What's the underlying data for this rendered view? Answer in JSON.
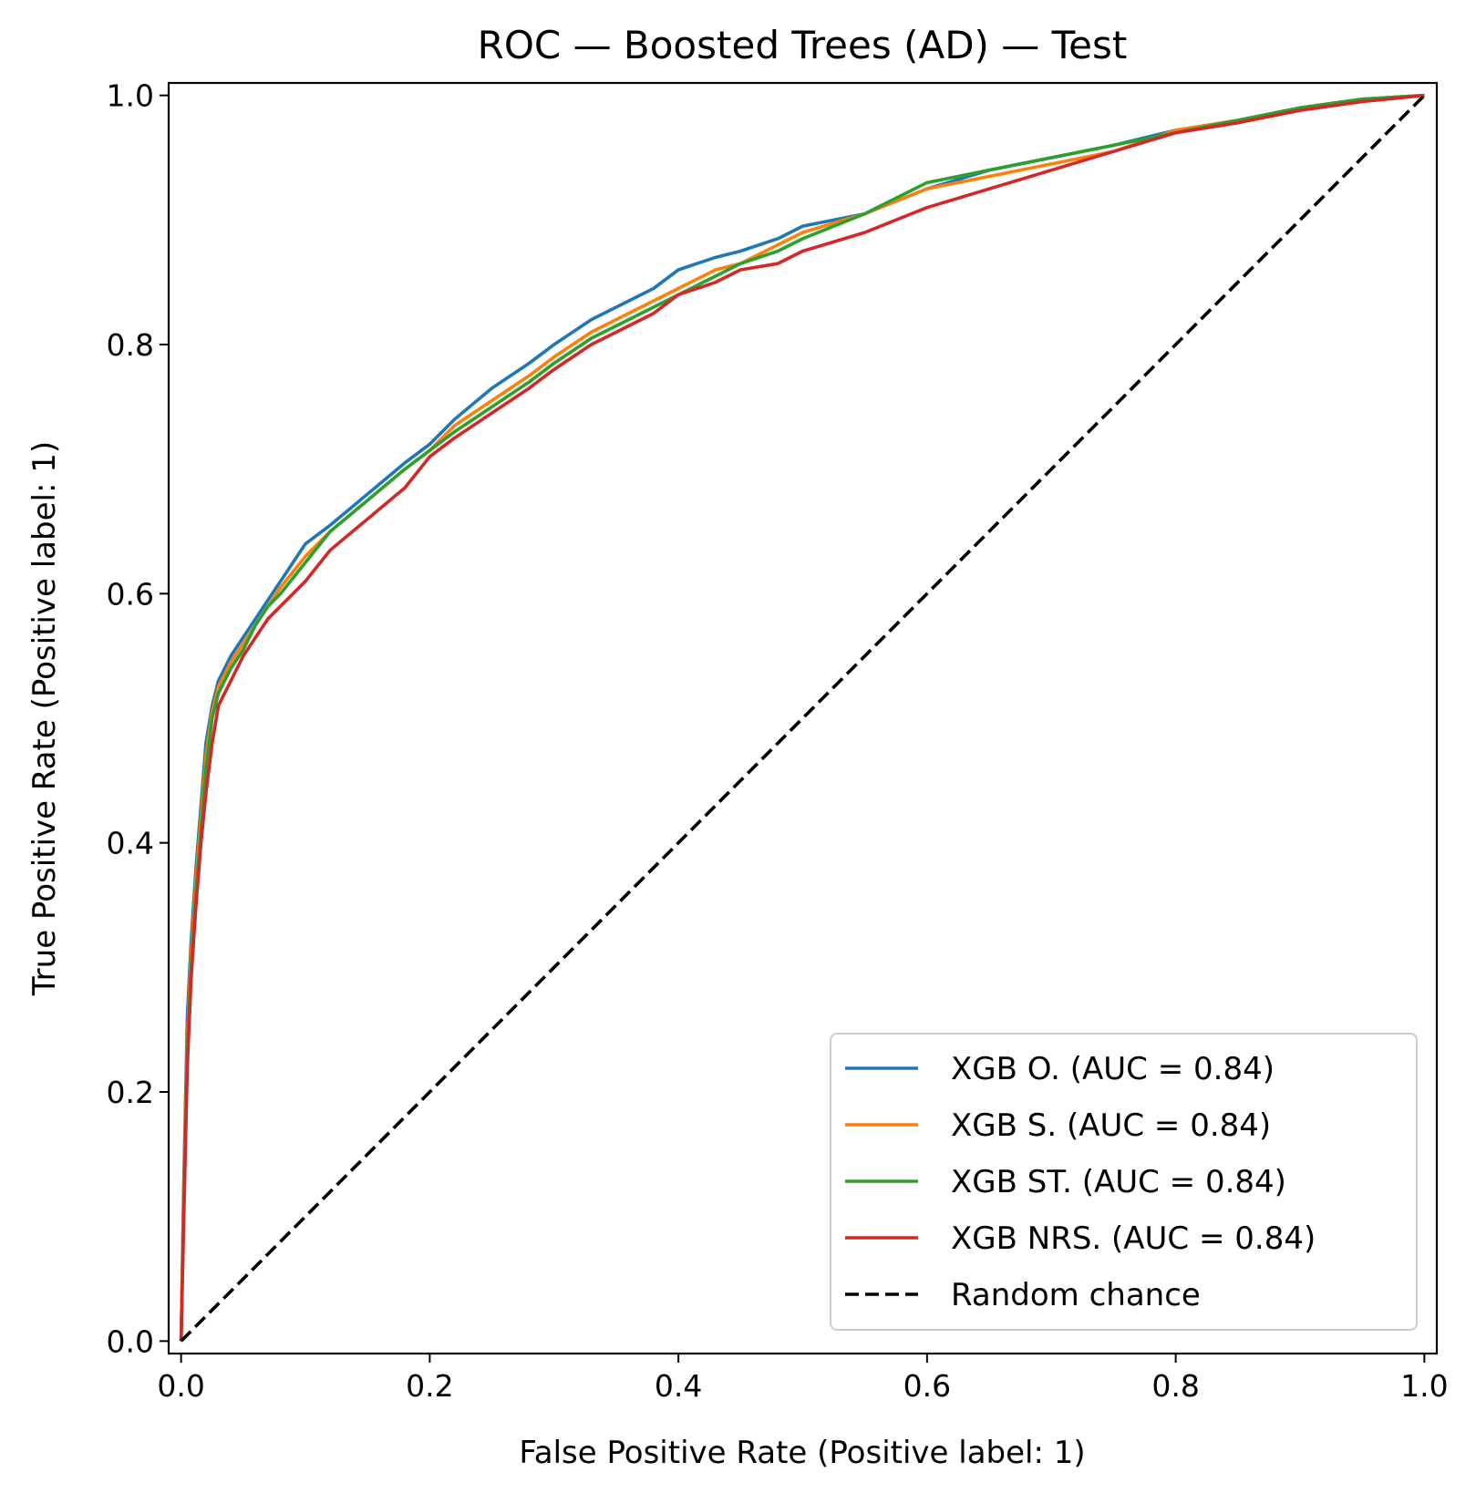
{
  "chart_data": {
    "type": "line",
    "title": "ROC — Boosted Trees (AD) — Test",
    "xlabel": "False Positive Rate (Positive label: 1)",
    "ylabel": "True Positive Rate (Positive label: 1)",
    "xlim": [
      -0.01,
      1.01
    ],
    "ylim": [
      -0.01,
      1.01
    ],
    "xticks": [
      0.0,
      0.2,
      0.4,
      0.6,
      0.8,
      1.0
    ],
    "yticks": [
      0.0,
      0.2,
      0.4,
      0.6,
      0.8,
      1.0
    ],
    "xtick_labels": [
      "0.0",
      "0.2",
      "0.4",
      "0.6",
      "0.8",
      "1.0"
    ],
    "ytick_labels": [
      "0.0",
      "0.2",
      "0.4",
      "0.6",
      "0.8",
      "1.0"
    ],
    "grid": false,
    "legend_position": "lower-right",
    "series": [
      {
        "name": "XGB O. (AUC = 0.84)",
        "color": "#1f77b4",
        "style": "solid",
        "x": [
          0,
          0.002,
          0.005,
          0.008,
          0.012,
          0.016,
          0.02,
          0.025,
          0.03,
          0.04,
          0.05,
          0.06,
          0.07,
          0.08,
          0.1,
          0.12,
          0.15,
          0.18,
          0.2,
          0.22,
          0.25,
          0.28,
          0.3,
          0.33,
          0.35,
          0.38,
          0.4,
          0.43,
          0.45,
          0.48,
          0.5,
          0.55,
          0.6,
          0.65,
          0.7,
          0.75,
          0.8,
          0.85,
          0.9,
          0.95,
          1.0
        ],
        "y": [
          0,
          0.12,
          0.26,
          0.32,
          0.38,
          0.43,
          0.48,
          0.51,
          0.53,
          0.55,
          0.565,
          0.58,
          0.595,
          0.61,
          0.64,
          0.655,
          0.68,
          0.705,
          0.72,
          0.74,
          0.765,
          0.785,
          0.8,
          0.82,
          0.83,
          0.845,
          0.86,
          0.87,
          0.875,
          0.885,
          0.895,
          0.905,
          0.925,
          0.94,
          0.95,
          0.96,
          0.972,
          0.98,
          0.99,
          0.997,
          1.0
        ]
      },
      {
        "name": "XGB S. (AUC = 0.84)",
        "color": "#ff7f0e",
        "style": "solid",
        "x": [
          0,
          0.002,
          0.005,
          0.008,
          0.012,
          0.016,
          0.02,
          0.025,
          0.03,
          0.04,
          0.05,
          0.06,
          0.07,
          0.08,
          0.1,
          0.12,
          0.15,
          0.18,
          0.2,
          0.22,
          0.25,
          0.28,
          0.3,
          0.33,
          0.35,
          0.38,
          0.4,
          0.43,
          0.45,
          0.48,
          0.5,
          0.55,
          0.6,
          0.65,
          0.7,
          0.75,
          0.8,
          0.85,
          0.9,
          0.95,
          1.0
        ],
        "y": [
          0,
          0.11,
          0.24,
          0.31,
          0.37,
          0.42,
          0.47,
          0.505,
          0.525,
          0.545,
          0.56,
          0.575,
          0.59,
          0.605,
          0.63,
          0.65,
          0.675,
          0.7,
          0.715,
          0.735,
          0.755,
          0.775,
          0.79,
          0.81,
          0.82,
          0.835,
          0.845,
          0.86,
          0.865,
          0.88,
          0.89,
          0.905,
          0.925,
          0.935,
          0.945,
          0.955,
          0.972,
          0.98,
          0.99,
          0.997,
          1.0
        ]
      },
      {
        "name": "XGB ST. (AUC = 0.84)",
        "color": "#2ca02c",
        "style": "solid",
        "x": [
          0,
          0.002,
          0.005,
          0.008,
          0.012,
          0.016,
          0.02,
          0.025,
          0.03,
          0.04,
          0.05,
          0.06,
          0.07,
          0.08,
          0.1,
          0.12,
          0.15,
          0.18,
          0.2,
          0.22,
          0.25,
          0.28,
          0.3,
          0.33,
          0.35,
          0.38,
          0.4,
          0.43,
          0.45,
          0.48,
          0.5,
          0.55,
          0.6,
          0.65,
          0.7,
          0.75,
          0.8,
          0.85,
          0.9,
          0.95,
          1.0
        ],
        "y": [
          0,
          0.1,
          0.23,
          0.3,
          0.36,
          0.41,
          0.46,
          0.5,
          0.52,
          0.54,
          0.555,
          0.575,
          0.59,
          0.6,
          0.625,
          0.65,
          0.675,
          0.7,
          0.715,
          0.73,
          0.75,
          0.77,
          0.785,
          0.805,
          0.815,
          0.83,
          0.84,
          0.855,
          0.865,
          0.875,
          0.885,
          0.905,
          0.93,
          0.94,
          0.95,
          0.96,
          0.97,
          0.98,
          0.99,
          0.997,
          1.0
        ]
      },
      {
        "name": "XGB NRS. (AUC = 0.84)",
        "color": "#d62728",
        "style": "solid",
        "x": [
          0,
          0.002,
          0.005,
          0.008,
          0.012,
          0.016,
          0.02,
          0.025,
          0.03,
          0.04,
          0.05,
          0.06,
          0.07,
          0.08,
          0.1,
          0.12,
          0.15,
          0.18,
          0.2,
          0.22,
          0.25,
          0.28,
          0.3,
          0.33,
          0.35,
          0.38,
          0.4,
          0.43,
          0.45,
          0.48,
          0.5,
          0.55,
          0.6,
          0.65,
          0.7,
          0.75,
          0.8,
          0.85,
          0.9,
          0.95,
          1.0
        ],
        "y": [
          0,
          0.09,
          0.22,
          0.29,
          0.35,
          0.4,
          0.44,
          0.48,
          0.51,
          0.53,
          0.55,
          0.565,
          0.58,
          0.59,
          0.61,
          0.635,
          0.66,
          0.685,
          0.71,
          0.725,
          0.745,
          0.765,
          0.78,
          0.8,
          0.81,
          0.825,
          0.84,
          0.85,
          0.86,
          0.865,
          0.875,
          0.89,
          0.91,
          0.925,
          0.94,
          0.955,
          0.97,
          0.978,
          0.988,
          0.995,
          1.0
        ]
      },
      {
        "name": "Random chance",
        "color": "#000000",
        "style": "dashed",
        "x": [
          0,
          1
        ],
        "y": [
          0,
          1
        ]
      }
    ]
  }
}
